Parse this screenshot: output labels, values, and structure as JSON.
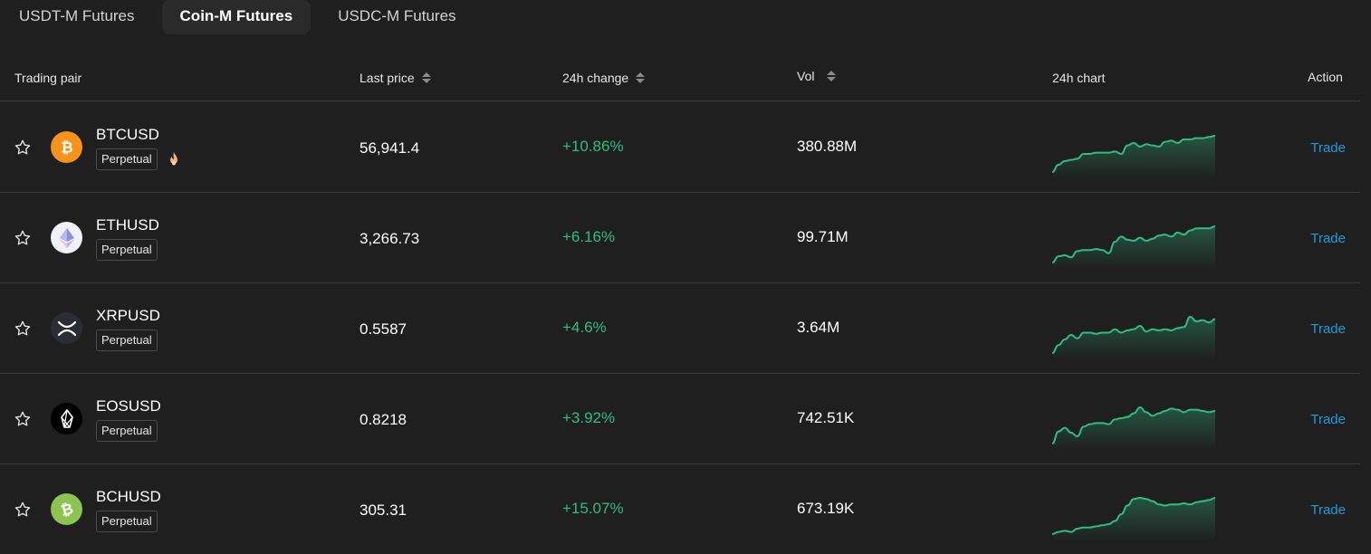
{
  "tabs": [
    {
      "label": "USDT-M Futures"
    },
    {
      "label": "Coin-M Futures"
    },
    {
      "label": "USDC-M Futures"
    }
  ],
  "active_tab": 1,
  "columns": {
    "pair": "Trading pair",
    "price": "Last price",
    "change": "24h change",
    "vol": "Vol",
    "chart": "24h chart",
    "action": "Action"
  },
  "colors": {
    "up": "#2ebd85",
    "link": "#1f9ed8"
  },
  "rows": [
    {
      "symbol": "BTCUSD",
      "badge": "Perpetual",
      "hot": true,
      "coin_icon": "bitcoin-icon",
      "price": "56,941.4",
      "change": "+10.86%",
      "vol": "380.88M",
      "action": "Trade",
      "chart": [
        0,
        6,
        9,
        10,
        11,
        15,
        15,
        16,
        16,
        16,
        17,
        15,
        22,
        24,
        21,
        23,
        22,
        21,
        25,
        26,
        24,
        27,
        27,
        28,
        28,
        29,
        30
      ]
    },
    {
      "symbol": "ETHUSD",
      "badge": "Perpetual",
      "hot": false,
      "coin_icon": "ethereum-icon",
      "price": "3,266.73",
      "change": "+6.16%",
      "vol": "99.71M",
      "action": "Trade",
      "chart": [
        0,
        6,
        7,
        5,
        11,
        12,
        12,
        13,
        12,
        9,
        20,
        25,
        22,
        21,
        24,
        21,
        23,
        26,
        27,
        25,
        29,
        27,
        31,
        33,
        33,
        33,
        35
      ]
    },
    {
      "symbol": "XRPUSD",
      "badge": "Perpetual",
      "hot": false,
      "coin_icon": "xrp-icon",
      "price": "0.5587",
      "change": "+4.6%",
      "vol": "3.64M",
      "action": "Trade",
      "chart": [
        0,
        7,
        12,
        16,
        13,
        18,
        18,
        17,
        18,
        18,
        21,
        18,
        20,
        21,
        24,
        19,
        21,
        20,
        21,
        20,
        22,
        23,
        32,
        28,
        29,
        27,
        30
      ]
    },
    {
      "symbol": "EOSUSD",
      "badge": "Perpetual",
      "hot": false,
      "coin_icon": "eos-icon",
      "price": "0.8218",
      "change": "+3.92%",
      "vol": "742.51K",
      "action": "Trade",
      "chart": [
        0,
        10,
        13,
        9,
        6,
        14,
        16,
        17,
        17,
        16,
        20,
        21,
        22,
        25,
        30,
        26,
        23,
        25,
        27,
        29,
        28,
        26,
        28,
        28,
        27,
        26,
        27
      ]
    },
    {
      "symbol": "BCHUSD",
      "badge": "Perpetual",
      "hot": false,
      "coin_icon": "bitcoin-cash-icon",
      "price": "305.31",
      "change": "+15.07%",
      "vol": "673.19K",
      "action": "Trade",
      "chart": [
        0,
        2,
        3,
        2,
        5,
        6,
        6,
        7,
        8,
        9,
        12,
        18,
        26,
        32,
        33,
        32,
        30,
        27,
        26,
        27,
        27,
        28,
        27,
        29,
        30,
        31,
        33
      ]
    }
  ]
}
